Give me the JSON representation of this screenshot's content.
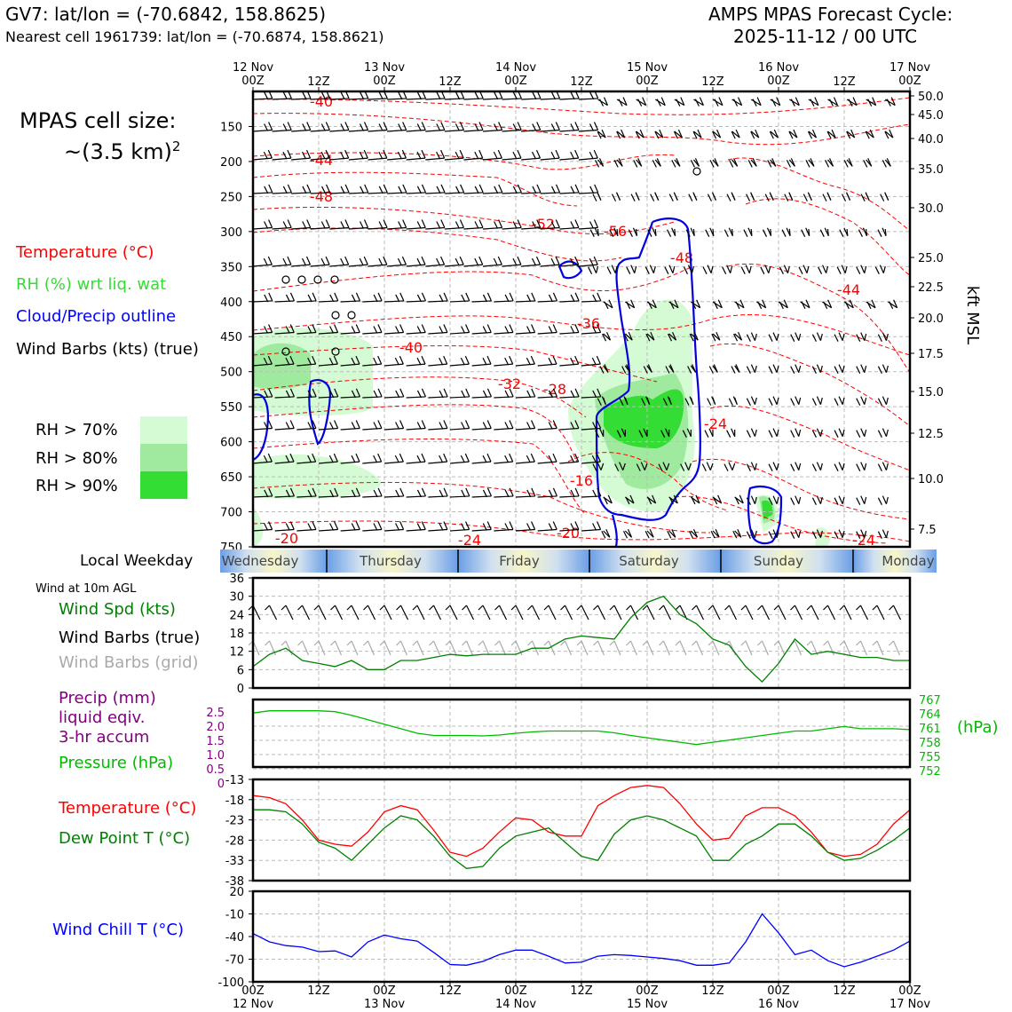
{
  "header": {
    "station_line": "GV7: lat/lon = (-70.6842, 158.8625)",
    "nearest_cell_line": "Nearest cell 1961739: lat/lon = (-70.6874, 158.8621)",
    "cycle_title_line1": "AMPS MPAS Forecast Cycle:",
    "cycle_title_line2": "2025-11-12 / 00 UTC"
  },
  "legend": {
    "cell_size_label": "MPAS cell size:",
    "cell_size_value": "~(3.5 km)",
    "cell_size_exp": "2",
    "temperature": "Temperature (°C)",
    "rh": "RH (%) wrt liq. wat",
    "cloud": "Cloud/Precip outline",
    "wind_barbs": "Wind Barbs (kts) (true)",
    "rh70": "RH > 70%",
    "rh80": "RH > 80%",
    "rh90": "RH > 90%",
    "rh70_color": "#d4fbd4",
    "rh80_color": "#a0eaa0",
    "rh90_color": "#33dd33"
  },
  "weekday_bar": {
    "label": "Local Weekday",
    "days": [
      "Wednesday",
      "Thursday",
      "Friday",
      "Saturday",
      "Sunday",
      "Monday"
    ]
  },
  "panel_labels": {
    "wind_at_10m": "Wind at 10m AGL",
    "wind_spd": "Wind Spd (kts)",
    "wind_barbs_true": "Wind Barbs (true)",
    "wind_barbs_grid": "Wind Barbs (grid)",
    "precip_line1": "Precip (mm)",
    "precip_line2": "liquid eqiv.",
    "precip_line3": "3-hr accum",
    "pressure": "Pressure (hPa)",
    "pressure_unit": "(hPa)",
    "temperature": "Temperature (°C)",
    "dewpoint": "Dew Point T (°C)",
    "wind_chill": "Wind Chill T (°C)"
  },
  "colors": {
    "temperature": "#ff0000",
    "green": "#008000",
    "bright_green": "#00bb00",
    "cloud": "#0000dd",
    "precip": "#800080",
    "grid_barb": "#aaaaaa",
    "wind_chill": "#0000ff"
  },
  "chart_data": [
    {
      "type": "heatmap",
      "name": "time-height cross section",
      "x_top_tick_labels": [
        "12 Nov\n00Z",
        "12Z",
        "13 Nov\n00Z",
        "12Z",
        "14 Nov\n00Z",
        "12Z",
        "15 Nov\n00Z",
        "12Z",
        "16 Nov\n00Z",
        "12Z",
        "17 Nov\n00Z"
      ],
      "xlim": [
        0,
        120
      ],
      "y_left_ticks": [
        150,
        200,
        250,
        300,
        350,
        400,
        450,
        500,
        550,
        600,
        650,
        700,
        750
      ],
      "ylim": [
        750,
        100
      ],
      "y_right_label": "kft MSL",
      "y_right_ticks": [
        "50.0",
        "45.0",
        "40.0",
        "35.0",
        "30.0",
        "25.0",
        "22.5",
        "20.0",
        "17.5",
        "15.0",
        "12.5",
        "10.0",
        "7.5"
      ],
      "temperature_contour_labels": [
        "-40",
        "-44",
        "-48",
        "-52",
        "-56",
        "-48",
        "-44",
        "-36",
        "-40",
        "-32",
        "-28",
        "-24",
        "-16",
        "-20",
        "-20",
        "-24",
        "-24"
      ],
      "rh_categories": [
        "RH > 70%",
        "RH > 80%",
        "RH > 90%"
      ]
    },
    {
      "type": "line",
      "name": "wind speed 10m",
      "x_hours": [
        0,
        3,
        6,
        9,
        12,
        15,
        18,
        21,
        24,
        27,
        30,
        33,
        36,
        39,
        42,
        45,
        48,
        51,
        54,
        57,
        60,
        63,
        66,
        69,
        72,
        75,
        78,
        81,
        84,
        87,
        90,
        93,
        96,
        99,
        102,
        105,
        108,
        111,
        114,
        117,
        120
      ],
      "series": [
        {
          "name": "Wind Spd (kts)",
          "values": [
            7,
            11,
            13,
            9,
            8,
            7,
            9,
            6,
            6,
            9,
            9,
            10,
            11,
            10.5,
            11,
            11,
            11,
            13,
            13,
            16,
            17,
            16.5,
            16,
            23,
            28,
            30,
            24,
            21,
            16,
            14,
            7,
            2,
            8,
            16,
            11,
            12,
            11,
            10,
            10,
            9,
            9
          ]
        }
      ],
      "y_ticks": [
        0,
        6,
        12,
        18,
        24,
        30,
        36
      ],
      "ylim": [
        0,
        36
      ]
    },
    {
      "type": "line",
      "name": "precip and pressure",
      "x_hours": [
        0,
        3,
        6,
        9,
        12,
        15,
        18,
        21,
        24,
        27,
        30,
        33,
        36,
        39,
        42,
        45,
        48,
        51,
        54,
        57,
        60,
        63,
        66,
        69,
        72,
        75,
        78,
        81,
        84,
        87,
        90,
        93,
        96,
        99,
        102,
        105,
        108,
        111,
        114,
        117,
        120
      ],
      "series": [
        {
          "name": "Pressure (hPa)",
          "values": [
            764.0,
            764.5,
            764.5,
            764.5,
            764.5,
            764.3,
            763.5,
            762.5,
            761.5,
            760.5,
            759.5,
            759.0,
            759.0,
            759.0,
            758.9,
            759.1,
            759.5,
            759.8,
            760.0,
            760.0,
            760.0,
            760.0,
            759.6,
            759.0,
            758.5,
            758.0,
            757.5,
            757.0,
            757.5,
            758.0,
            758.5,
            759.0,
            759.5,
            760.0,
            760.0,
            760.5,
            761.0,
            760.5,
            760.5,
            760.5,
            760.3
          ]
        }
      ],
      "y_left_ticks": [
        "2.5",
        "2.0",
        "1.5",
        "1.0",
        "0.5",
        "0"
      ],
      "y_right_ticks": [
        "767",
        "764",
        "761",
        "758",
        "755",
        "752"
      ],
      "precip_ylim": [
        0,
        2.5
      ],
      "pressure_ylim": [
        752,
        767
      ]
    },
    {
      "type": "line",
      "name": "temperature and dew point",
      "x_hours": [
        0,
        3,
        6,
        9,
        12,
        15,
        18,
        21,
        24,
        27,
        30,
        33,
        36,
        39,
        42,
        45,
        48,
        51,
        54,
        57,
        60,
        63,
        66,
        69,
        72,
        75,
        78,
        81,
        84,
        87,
        90,
        93,
        96,
        99,
        102,
        105,
        108,
        111,
        114,
        117,
        120
      ],
      "series": [
        {
          "name": "Temperature (°C)",
          "values": [
            -17,
            -17.5,
            -19,
            -23,
            -28,
            -29,
            -29.5,
            -26,
            -21,
            -19.5,
            -20.5,
            -25.5,
            -31,
            -32,
            -30,
            -26,
            -22.5,
            -23,
            -26,
            -27,
            -27,
            -19.5,
            -17,
            -15,
            -14.5,
            -15,
            -19,
            -24,
            -28,
            -27.5,
            -22,
            -20,
            -20,
            -22,
            -26,
            -31,
            -32,
            -31.5,
            -29,
            -24,
            -20.5
          ]
        },
        {
          "name": "Dew Point T (°C)",
          "values": [
            -20.5,
            -20.5,
            -21,
            -24,
            -28.5,
            -30,
            -33,
            -29,
            -25,
            -22,
            -23,
            -27,
            -32,
            -35,
            -34.5,
            -30,
            -27,
            -26,
            -25,
            -28.5,
            -32,
            -33,
            -26.5,
            -23,
            -22,
            -23,
            -25,
            -27,
            -33,
            -33,
            -29,
            -27,
            -24,
            -24,
            -27,
            -31,
            -33,
            -32.5,
            -30.5,
            -28,
            -25
          ]
        }
      ],
      "y_ticks": [
        -13,
        -18,
        -23,
        -28,
        -33,
        -38
      ],
      "ylim": [
        -38,
        -13
      ]
    },
    {
      "type": "line",
      "name": "wind chill",
      "x_hours": [
        0,
        3,
        6,
        9,
        12,
        15,
        18,
        21,
        24,
        27,
        30,
        33,
        36,
        39,
        42,
        45,
        48,
        51,
        54,
        57,
        60,
        63,
        66,
        69,
        72,
        75,
        78,
        81,
        84,
        87,
        90,
        93,
        96,
        99,
        102,
        105,
        108,
        111,
        114,
        117,
        120
      ],
      "series": [
        {
          "name": "Wind Chill T (°C)",
          "values": [
            -36,
            -47,
            -52,
            -54,
            -60,
            -59,
            -67,
            -47,
            -38,
            -43,
            -46,
            -61,
            -77,
            -78,
            -73,
            -64,
            -58,
            -58,
            -66,
            -75,
            -74,
            -66,
            -64,
            -65,
            -67,
            -69,
            -72,
            -78,
            -78,
            -75,
            -47,
            -10,
            -35,
            -64,
            -58,
            -72,
            -80,
            -74,
            -66,
            -58,
            -46
          ]
        }
      ],
      "y_ticks": [
        20,
        -10,
        -40,
        -70,
        -100
      ],
      "ylim": [
        -100,
        20
      ]
    }
  ],
  "x_bottom_tick_labels": [
    "00Z\n12 Nov",
    "12Z",
    "00Z\n13 Nov",
    "12Z",
    "00Z\n14 Nov",
    "12Z",
    "00Z\n15 Nov",
    "12Z",
    "00Z\n16 Nov",
    "12Z",
    "00Z\n17 Nov"
  ]
}
